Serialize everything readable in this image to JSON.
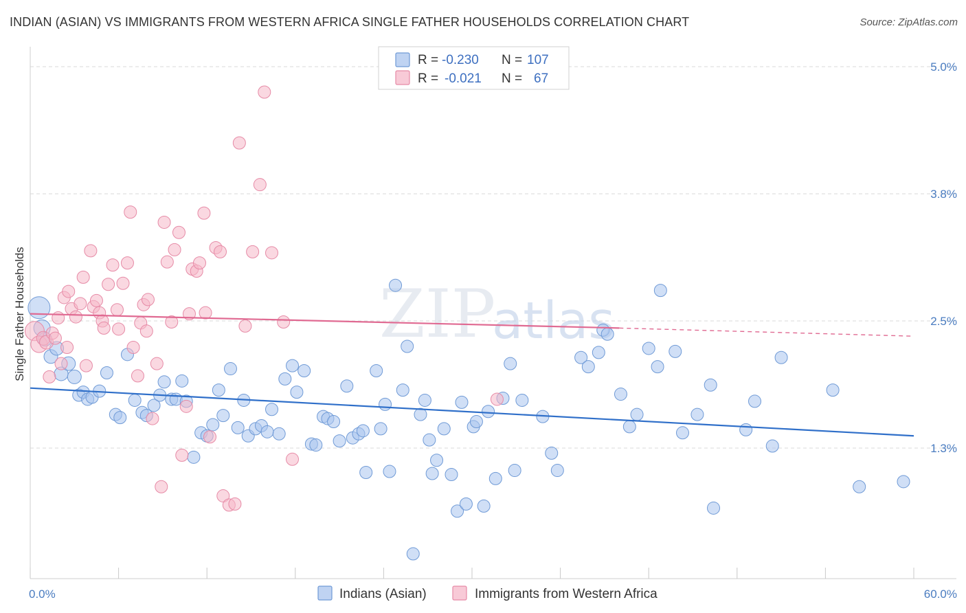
{
  "title": "INDIAN (ASIAN) VS IMMIGRANTS FROM WESTERN AFRICA SINGLE FATHER HOUSEHOLDS CORRELATION CHART",
  "source": "Source: ZipAtlas.com",
  "watermark": {
    "zip": "ZIP",
    "atlas": "atlas"
  },
  "legend": {
    "rows": [
      {
        "r_label": "R = ",
        "r_value": "-0.230",
        "n_label": "N = ",
        "n_value": "107",
        "color": "#a9c4ee"
      },
      {
        "r_label": "R = ",
        "r_value": "-0.021",
        "n_label": "N = ",
        "n_value": "67",
        "color": "#f6b8c9"
      }
    ]
  },
  "bottom_legend": [
    {
      "label": "Indians (Asian)",
      "color": "#a9c4ee"
    },
    {
      "label": "Immigrants from Western Africa",
      "color": "#f6b8c9"
    }
  ],
  "chart_data": {
    "type": "scatter",
    "ylabel": "Single Father Households",
    "xlabel": "",
    "xlim": [
      0,
      60
    ],
    "ylim": [
      0,
      5.2
    ],
    "x_tick_labels": [
      {
        "value": 0,
        "label": "0.0%"
      },
      {
        "value": 60,
        "label": "60.0%"
      }
    ],
    "y_tick_labels": [
      {
        "value": 1.25,
        "label": "1.3%"
      },
      {
        "value": 2.5,
        "label": "2.5%"
      },
      {
        "value": 3.75,
        "label": "3.8%"
      },
      {
        "value": 5.0,
        "label": "5.0%"
      }
    ],
    "grid": "horizontal dashed",
    "series": [
      {
        "name": "Indians (Asian)",
        "color": "#a9c4ee",
        "edge": "#6f9ad6",
        "trend": {
          "color": "#2f6fc9",
          "x": [
            0,
            60
          ],
          "y": [
            1.84,
            1.37
          ]
        },
        "points": [
          [
            0.6,
            2.63,
            16
          ],
          [
            0.8,
            2.43,
            12
          ],
          [
            1.0,
            2.32,
            10
          ],
          [
            1.4,
            2.15,
            10
          ],
          [
            1.8,
            2.23,
            10
          ],
          [
            2.1,
            1.98,
            10
          ],
          [
            2.6,
            2.08,
            10
          ],
          [
            3.0,
            1.95,
            10
          ],
          [
            3.3,
            1.77,
            9
          ],
          [
            3.6,
            1.8,
            9
          ],
          [
            3.9,
            1.73,
            9
          ],
          [
            4.2,
            1.75,
            9
          ],
          [
            4.7,
            1.81,
            9
          ],
          [
            5.2,
            1.99,
            9
          ],
          [
            5.8,
            1.58,
            9
          ],
          [
            6.1,
            1.55,
            9
          ],
          [
            6.6,
            2.17,
            9
          ],
          [
            7.1,
            1.72,
            9
          ],
          [
            7.6,
            1.6,
            9
          ],
          [
            7.9,
            1.57,
            9
          ],
          [
            8.4,
            1.67,
            9
          ],
          [
            8.8,
            1.77,
            9
          ],
          [
            9.1,
            1.9,
            9
          ],
          [
            9.6,
            1.73,
            9
          ],
          [
            9.9,
            1.73,
            9
          ],
          [
            10.3,
            1.91,
            9
          ],
          [
            10.6,
            1.71,
            9
          ],
          [
            11.1,
            1.16,
            9
          ],
          [
            11.6,
            1.4,
            9
          ],
          [
            12.0,
            1.37,
            9
          ],
          [
            12.4,
            1.48,
            9
          ],
          [
            12.8,
            1.82,
            9
          ],
          [
            13.1,
            1.57,
            9
          ],
          [
            13.6,
            2.03,
            9
          ],
          [
            14.1,
            1.45,
            9
          ],
          [
            14.5,
            1.72,
            9
          ],
          [
            14.8,
            1.37,
            9
          ],
          [
            15.3,
            1.44,
            9
          ],
          [
            15.7,
            1.47,
            9
          ],
          [
            16.1,
            1.41,
            9
          ],
          [
            16.4,
            1.63,
            9
          ],
          [
            16.9,
            1.39,
            9
          ],
          [
            17.3,
            1.93,
            9
          ],
          [
            17.8,
            2.06,
            9
          ],
          [
            18.1,
            1.8,
            9
          ],
          [
            18.6,
            2.01,
            9
          ],
          [
            19.1,
            1.29,
            9
          ],
          [
            19.4,
            1.28,
            9
          ],
          [
            19.9,
            1.56,
            9
          ],
          [
            20.2,
            1.54,
            9
          ],
          [
            20.6,
            1.51,
            9
          ],
          [
            21.0,
            1.32,
            9
          ],
          [
            21.5,
            1.86,
            9
          ],
          [
            21.9,
            1.35,
            9
          ],
          [
            22.3,
            1.39,
            9
          ],
          [
            22.6,
            1.42,
            9
          ],
          [
            22.8,
            1.01,
            9
          ],
          [
            23.5,
            2.01,
            9
          ],
          [
            23.8,
            1.44,
            9
          ],
          [
            24.1,
            1.68,
            9
          ],
          [
            24.4,
            1.02,
            9
          ],
          [
            24.8,
            2.85,
            9
          ],
          [
            25.3,
            1.82,
            9
          ],
          [
            25.6,
            2.25,
            9
          ],
          [
            26.0,
            0.21,
            9
          ],
          [
            26.5,
            1.58,
            9
          ],
          [
            26.8,
            1.72,
            9
          ],
          [
            27.1,
            1.33,
            9
          ],
          [
            27.3,
            1.0,
            9
          ],
          [
            27.6,
            1.13,
            9
          ],
          [
            28.1,
            1.44,
            9
          ],
          [
            28.6,
            0.99,
            9
          ],
          [
            29.0,
            0.63,
            9
          ],
          [
            29.3,
            1.7,
            9
          ],
          [
            29.6,
            0.7,
            9
          ],
          [
            30.1,
            1.46,
            9
          ],
          [
            30.3,
            1.51,
            9
          ],
          [
            30.8,
            0.68,
            9
          ],
          [
            31.1,
            1.61,
            9
          ],
          [
            31.6,
            0.95,
            9
          ],
          [
            32.1,
            1.74,
            9
          ],
          [
            32.6,
            2.08,
            9
          ],
          [
            32.9,
            1.03,
            9
          ],
          [
            33.4,
            1.72,
            9
          ],
          [
            34.8,
            1.56,
            9
          ],
          [
            35.4,
            1.2,
            9
          ],
          [
            35.8,
            1.03,
            9
          ],
          [
            37.4,
            2.14,
            9
          ],
          [
            37.9,
            2.05,
            9
          ],
          [
            38.6,
            2.19,
            9
          ],
          [
            38.9,
            2.41,
            9
          ],
          [
            39.2,
            2.37,
            9
          ],
          [
            40.1,
            1.78,
            9
          ],
          [
            40.7,
            1.46,
            9
          ],
          [
            41.2,
            1.58,
            9
          ],
          [
            42.0,
            2.23,
            9
          ],
          [
            42.6,
            2.05,
            9
          ],
          [
            42.8,
            2.8,
            9
          ],
          [
            43.8,
            2.2,
            9
          ],
          [
            44.3,
            1.4,
            9
          ],
          [
            45.3,
            1.58,
            9
          ],
          [
            46.2,
            1.87,
            9
          ],
          [
            46.4,
            0.66,
            9
          ],
          [
            48.6,
            1.43,
            9
          ],
          [
            49.2,
            1.71,
            9
          ],
          [
            50.4,
            1.27,
            9
          ],
          [
            51.0,
            2.14,
            9
          ],
          [
            54.5,
            1.82,
            9
          ],
          [
            56.3,
            0.87,
            9
          ],
          [
            59.3,
            0.92,
            9
          ]
        ]
      },
      {
        "name": "Immigrants from Western Africa",
        "color": "#f6b8c9",
        "edge": "#e68aa6",
        "trend": {
          "color": "#e06a92",
          "x": [
            0,
            40
          ],
          "y": [
            2.57,
            2.43
          ],
          "dashed_to": {
            "x": 60,
            "y": 2.35
          }
        },
        "points": [
          [
            0.3,
            2.4,
            14
          ],
          [
            0.6,
            2.27,
            12
          ],
          [
            0.9,
            2.33,
            10
          ],
          [
            1.1,
            2.29,
            10
          ],
          [
            1.3,
            1.95,
            9
          ],
          [
            1.5,
            2.38,
            9
          ],
          [
            1.7,
            2.33,
            9
          ],
          [
            1.9,
            2.53,
            9
          ],
          [
            2.1,
            2.08,
            9
          ],
          [
            2.3,
            2.73,
            9
          ],
          [
            2.5,
            2.24,
            9
          ],
          [
            2.6,
            2.79,
            9
          ],
          [
            2.8,
            2.62,
            9
          ],
          [
            3.1,
            2.54,
            9
          ],
          [
            3.4,
            2.67,
            9
          ],
          [
            3.6,
            2.93,
            9
          ],
          [
            3.8,
            2.06,
            9
          ],
          [
            4.1,
            3.19,
            9
          ],
          [
            4.3,
            2.64,
            9
          ],
          [
            4.5,
            2.7,
            9
          ],
          [
            4.7,
            2.58,
            9
          ],
          [
            4.9,
            2.5,
            9
          ],
          [
            5.0,
            2.43,
            9
          ],
          [
            5.3,
            2.86,
            9
          ],
          [
            5.6,
            3.05,
            9
          ],
          [
            5.9,
            2.61,
            9
          ],
          [
            6.0,
            2.42,
            9
          ],
          [
            6.3,
            2.87,
            9
          ],
          [
            6.6,
            3.07,
            9
          ],
          [
            6.8,
            3.57,
            9
          ],
          [
            7.0,
            2.24,
            9
          ],
          [
            7.3,
            1.96,
            9
          ],
          [
            7.5,
            2.48,
            9
          ],
          [
            7.7,
            2.66,
            9
          ],
          [
            7.9,
            2.4,
            9
          ],
          [
            8.0,
            2.71,
            9
          ],
          [
            8.3,
            1.54,
            9
          ],
          [
            8.6,
            2.08,
            9
          ],
          [
            8.9,
            0.87,
            9
          ],
          [
            9.1,
            3.47,
            9
          ],
          [
            9.3,
            3.08,
            9
          ],
          [
            9.6,
            2.49,
            9
          ],
          [
            9.8,
            3.2,
            9
          ],
          [
            10.1,
            3.37,
            9
          ],
          [
            10.3,
            1.18,
            9
          ],
          [
            10.6,
            1.66,
            9
          ],
          [
            10.8,
            2.57,
            9
          ],
          [
            11.0,
            3.01,
            9
          ],
          [
            11.3,
            2.99,
            9
          ],
          [
            11.5,
            3.07,
            9
          ],
          [
            11.8,
            3.56,
            9
          ],
          [
            11.9,
            2.58,
            9
          ],
          [
            12.2,
            1.36,
            9
          ],
          [
            12.6,
            3.22,
            9
          ],
          [
            12.9,
            3.18,
            9
          ],
          [
            13.1,
            0.78,
            9
          ],
          [
            13.5,
            0.69,
            9
          ],
          [
            13.9,
            0.7,
            9
          ],
          [
            14.2,
            4.25,
            9
          ],
          [
            14.6,
            2.45,
            9
          ],
          [
            15.1,
            3.18,
            9
          ],
          [
            15.6,
            3.84,
            9
          ],
          [
            15.9,
            4.75,
            9
          ],
          [
            16.4,
            3.17,
            9
          ],
          [
            17.2,
            2.49,
            9
          ],
          [
            17.8,
            1.14,
            9
          ],
          [
            31.7,
            1.73,
            9
          ]
        ]
      }
    ]
  }
}
